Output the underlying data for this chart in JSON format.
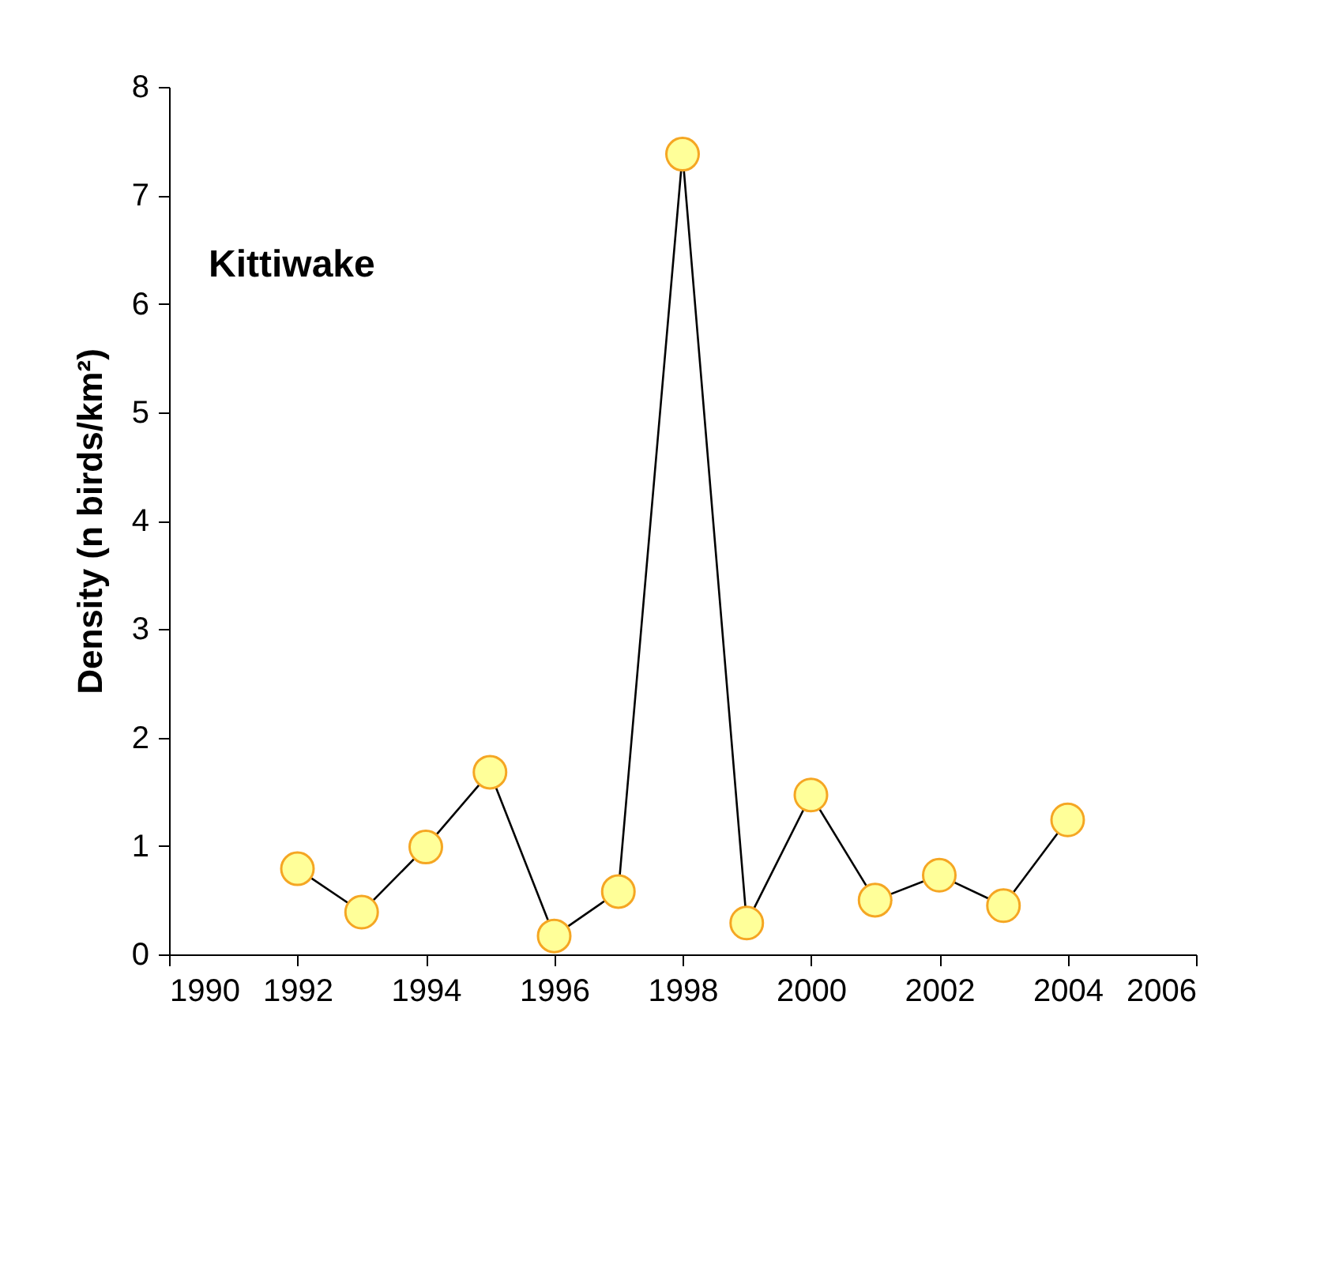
{
  "chart_data": {
    "type": "line",
    "title": "Kittiwake",
    "ylabel": "Density (n birds/km²)",
    "x": [
      1992,
      1993,
      1994,
      1995,
      1996,
      1997,
      1998,
      1999,
      2000,
      2001,
      2002,
      2003,
      2004
    ],
    "series": [
      {
        "color": "#000000",
        "values": [
          0.79,
          0.39,
          0.99,
          1.68,
          0.17,
          0.58,
          7.38,
          0.29,
          1.47,
          0.5,
          0.73,
          0.45,
          1.24
        ]
      }
    ],
    "xlim": [
      1990,
      2006
    ],
    "xticks": [
      1990,
      1992,
      1994,
      1996,
      1998,
      2000,
      2002,
      2004,
      2006
    ],
    "ylim": [
      0,
      8
    ],
    "yticks": [
      0,
      1,
      2,
      3,
      4,
      5,
      6,
      7,
      8
    ],
    "grid": false,
    "marker": "circle",
    "line_style": "solid"
  }
}
